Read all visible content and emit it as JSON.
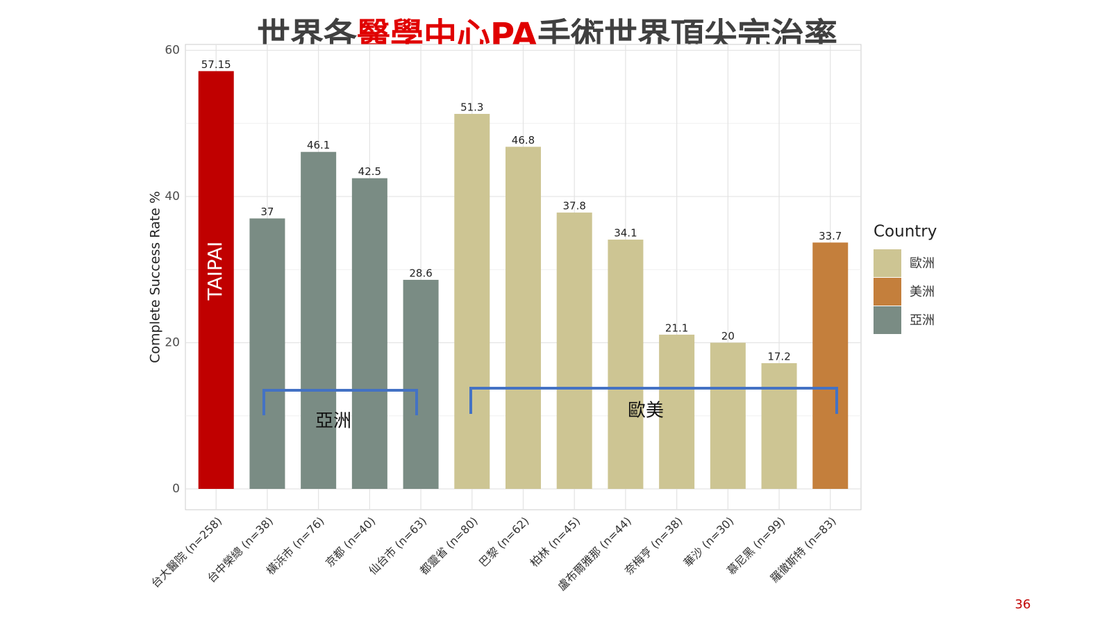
{
  "chart_data": {
    "type": "bar",
    "title": [
      "世界各",
      "醫學中心PA",
      "手術世界頂尖完治率"
    ],
    "y_label": "Complete Success Rate %",
    "categories": [
      "台大醫院 (n=258)",
      "台中榮總 (n=38)",
      "橫浜市 (n=76)",
      "京都 (n=40)",
      "仙台市 (n=63)",
      "都靈省 (n=80)",
      "巴黎 (n=62)",
      "柏林 (n=45)",
      "盧布爾雅那 (n=44)",
      "奈梅亨 (n=38)",
      "華沙 (n=30)",
      "慕尼黑 (n=99)",
      "羅徹斯特 (n=83)"
    ],
    "values": [
      57.15,
      37,
      46.1,
      42.5,
      28.6,
      51.3,
      46.8,
      37.8,
      34.1,
      21.1,
      20,
      17.2,
      33.7
    ],
    "colors": [
      "#c00000",
      "#7a8c84",
      "#7a8c84",
      "#7a8c84",
      "#7a8c84",
      "#cdc593",
      "#cdc593",
      "#cdc593",
      "#cdc593",
      "#cdc593",
      "#cdc593",
      "#cdc593",
      "#c47f3c"
    ],
    "ylim": [
      -2.85,
      60.8
    ],
    "yticks": [
      0,
      20,
      40,
      60
    ],
    "grid": true,
    "legend_title": "Country",
    "legend": [
      {
        "name": "歐洲",
        "color": "#cdc593"
      },
      {
        "name": "美洲",
        "color": "#c47f3c"
      },
      {
        "name": "亞洲",
        "color": "#7a8c84"
      }
    ],
    "bar_annotation": "TAIPAI",
    "annotations": [
      "亞洲",
      "歐美"
    ]
  },
  "page_number": "36"
}
